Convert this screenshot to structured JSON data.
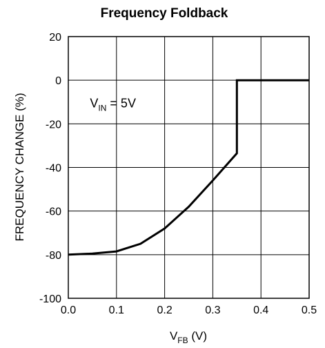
{
  "chart_data": {
    "type": "line",
    "title": "Frequency Foldback",
    "xlabel": {
      "main": "V",
      "sub": "FB",
      "unit": " (V)"
    },
    "ylabel": "FREQUENCY CHANGE (%)",
    "xlim": [
      0.0,
      0.5
    ],
    "ylim": [
      -100,
      20
    ],
    "xticks": [
      "0.0",
      "0.1",
      "0.2",
      "0.3",
      "0.4",
      "0.5"
    ],
    "yticks": [
      "20",
      "0",
      "-20",
      "-40",
      "-60",
      "-80",
      "-100"
    ],
    "grid": true,
    "annotation": {
      "main": "V",
      "sub": "IN",
      "rest": " = 5V",
      "at": [
        0.045,
        -12.5
      ]
    },
    "series": [
      {
        "x": [
          0.0,
          0.05,
          0.1,
          0.15,
          0.2,
          0.25,
          0.3,
          0.35,
          0.35,
          0.5
        ],
        "y": [
          -80,
          -79.5,
          -78.5,
          -75,
          -68,
          -58,
          -46,
          -33.5,
          0,
          0
        ]
      }
    ]
  }
}
